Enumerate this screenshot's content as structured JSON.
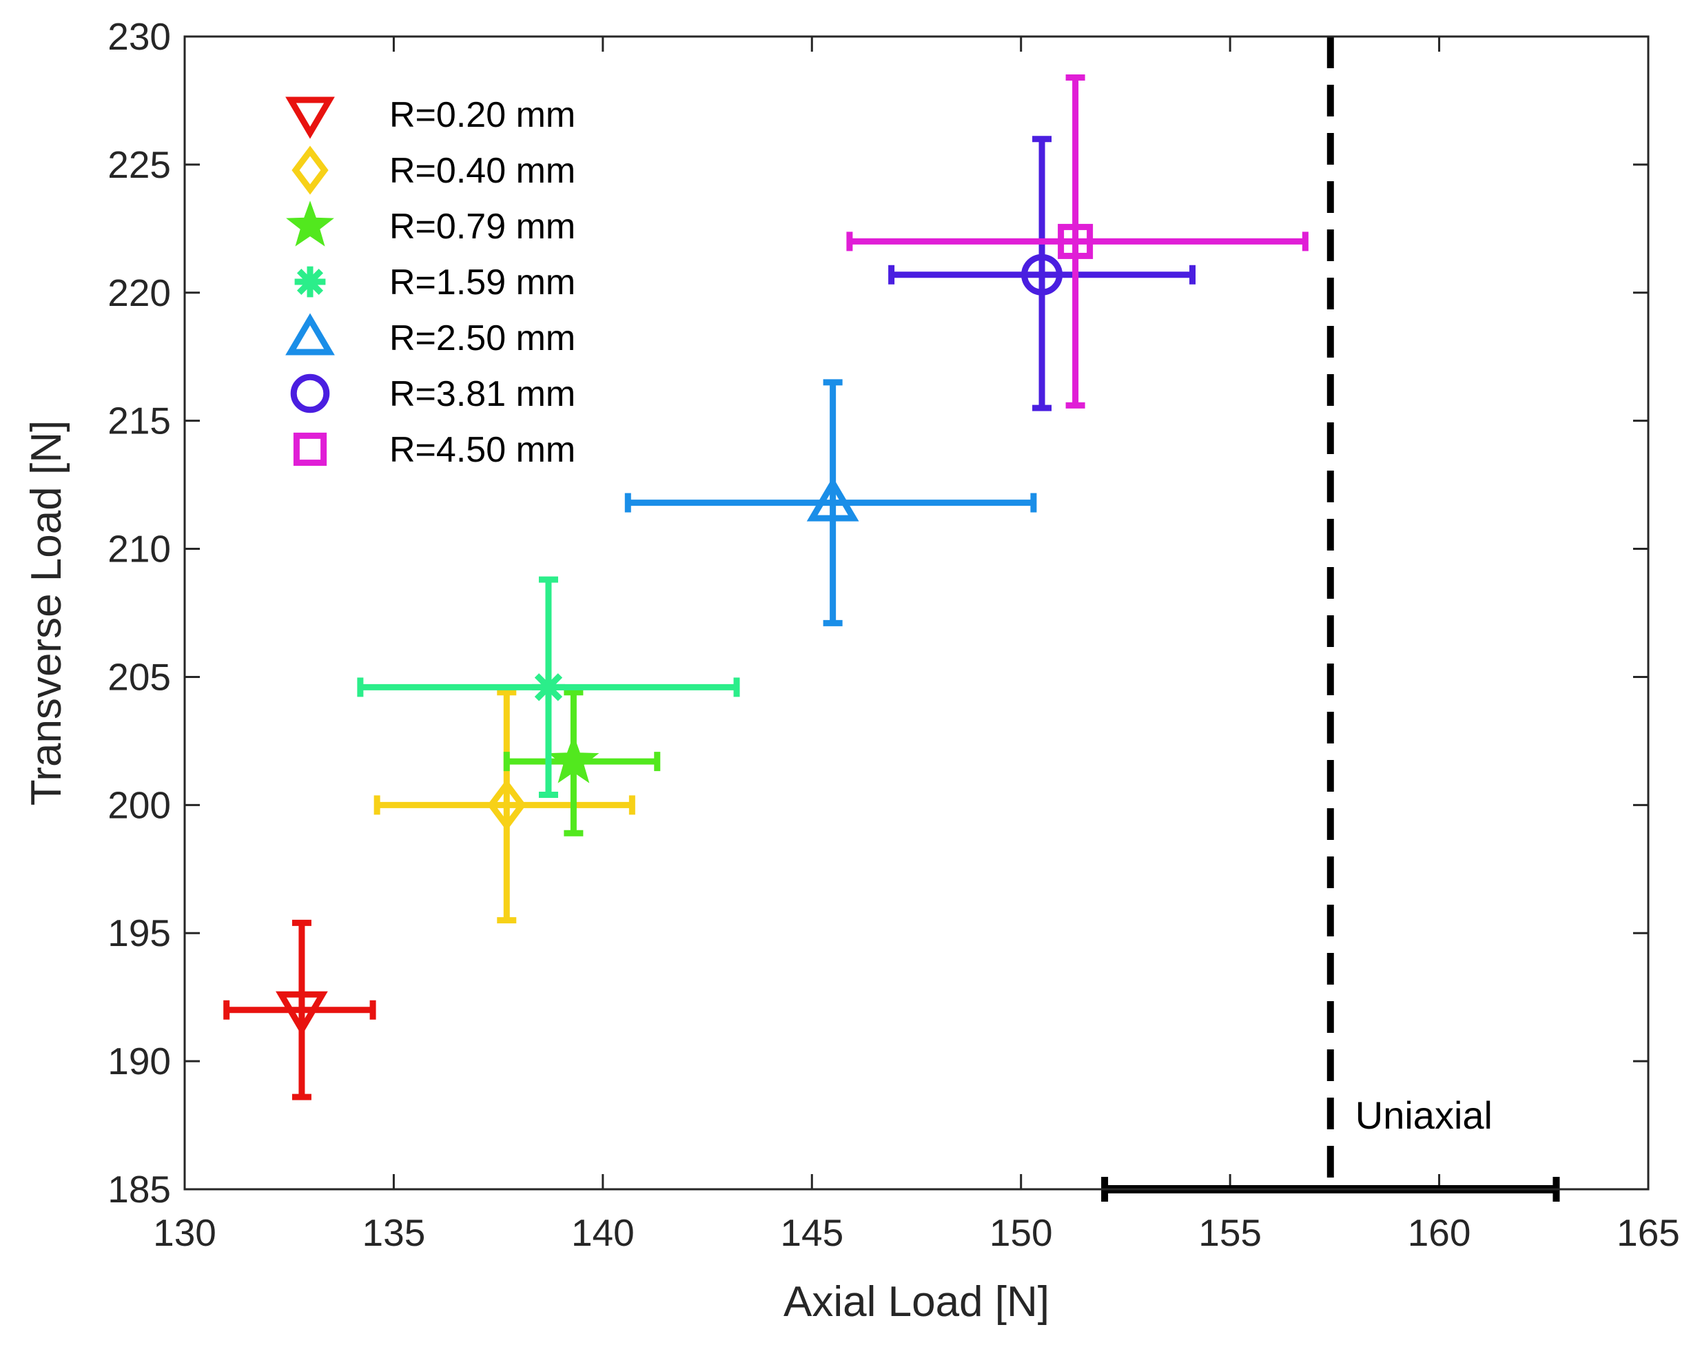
{
  "chart_data": {
    "type": "scatter",
    "title": "",
    "xlabel": "Axial Load [N]",
    "ylabel": "Transverse Load [N]",
    "xlim": [
      130,
      165
    ],
    "ylim": [
      185,
      230
    ],
    "xticks": [
      "130",
      "135",
      "140",
      "145",
      "150",
      "155",
      "160",
      "165"
    ],
    "yticks": [
      "185",
      "190",
      "195",
      "200",
      "205",
      "210",
      "215",
      "220",
      "225",
      "230"
    ],
    "grid": false,
    "legend_position": "top-left",
    "series": [
      {
        "name": "R=0.20 mm",
        "marker": "triangle-down",
        "color": "#e8120f",
        "x": 132.8,
        "y": 192.0,
        "x_err": [
          131.0,
          134.5
        ],
        "y_err": [
          188.6,
          195.4
        ]
      },
      {
        "name": "R=0.40 mm",
        "marker": "diamond",
        "color": "#f7d117",
        "x": 137.7,
        "y": 200.0,
        "x_err": [
          134.6,
          140.7
        ],
        "y_err": [
          195.5,
          204.4
        ]
      },
      {
        "name": "R=0.79 mm",
        "marker": "star",
        "color": "#52e81e",
        "x": 139.3,
        "y": 201.7,
        "x_err": [
          137.7,
          141.3
        ],
        "y_err": [
          198.9,
          204.4
        ]
      },
      {
        "name": "R=1.59 mm",
        "marker": "asterisk",
        "color": "#2bee8a",
        "x": 138.7,
        "y": 204.6,
        "x_err": [
          134.2,
          143.2
        ],
        "y_err": [
          200.4,
          208.8
        ]
      },
      {
        "name": "R=2.50 mm",
        "marker": "triangle-up",
        "color": "#1a8ee8",
        "x": 145.5,
        "y": 211.8,
        "x_err": [
          140.6,
          150.3
        ],
        "y_err": [
          207.1,
          216.5
        ]
      },
      {
        "name": "R=3.81 mm",
        "marker": "circle",
        "color": "#4a1ee0",
        "x": 150.5,
        "y": 220.7,
        "x_err": [
          146.9,
          154.1
        ],
        "y_err": [
          215.5,
          226.0
        ]
      },
      {
        "name": "R=4.50 mm",
        "marker": "square",
        "color": "#e01ed6",
        "x": 151.3,
        "y": 222.0,
        "x_err": [
          145.9,
          156.8
        ],
        "y_err": [
          215.6,
          228.4
        ]
      }
    ],
    "reference": {
      "label": "Uniaxial",
      "color": "#000000",
      "x": 157.4,
      "x_err": [
        152.0,
        162.8
      ],
      "y": 185
    }
  }
}
